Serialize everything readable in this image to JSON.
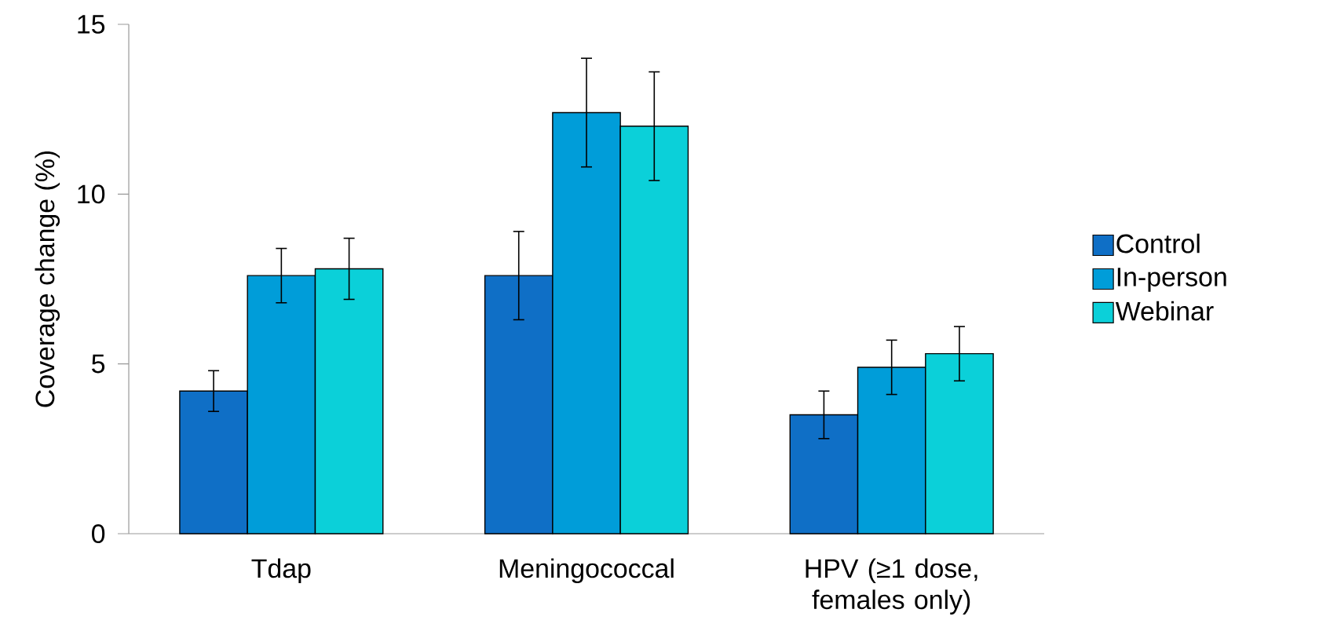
{
  "chart_data": {
    "type": "bar",
    "ylabel": "Coverage change (%)",
    "categories": [
      "Tdap",
      "Meningococcal",
      "HPV (≥1 dose, females only)"
    ],
    "series": [
      {
        "name": "Control",
        "color": "#0f6fc6",
        "values": [
          4.2,
          7.6,
          3.5
        ],
        "errors": [
          0.6,
          1.3,
          0.7
        ]
      },
      {
        "name": "In-person",
        "color": "#009dd9",
        "values": [
          7.6,
          12.4,
          4.9
        ],
        "errors": [
          0.8,
          1.6,
          0.8
        ]
      },
      {
        "name": "Webinar",
        "color": "#0bd0d9",
        "values": [
          7.8,
          12.0,
          5.3
        ],
        "errors": [
          0.9,
          1.6,
          0.8
        ]
      }
    ],
    "ylim": [
      0,
      15
    ],
    "yticks": [
      0,
      5,
      10,
      15
    ],
    "legend": "right"
  }
}
